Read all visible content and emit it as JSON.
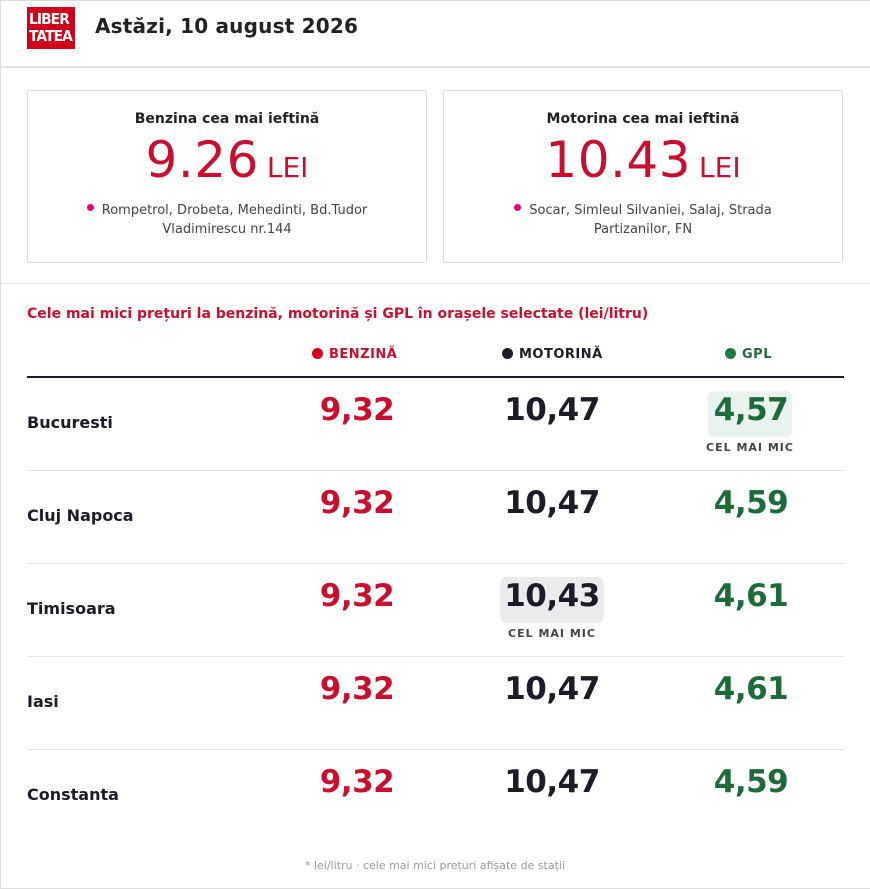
{
  "header": {
    "logo_line1": "LIBER",
    "logo_line2": "TATEA",
    "date": "Astăzi, 10 august 2026"
  },
  "cards": [
    {
      "title": "Benzina cea mai ieftină",
      "price": "9.26",
      "unit": "LEI",
      "location": "Rompetrol, Drobeta, Mehedinti, Bd.Tudor Vladimirescu nr.144"
    },
    {
      "title": "Motorina cea mai ieftină",
      "price": "10.43",
      "unit": "LEI",
      "location": "Socar, Simleul Silvaniei, Salaj, Strada Partizanilor, FN"
    }
  ],
  "table": {
    "title": "Cele mai mici prețuri la benzină, motorină și GPL în orașele selectate (lei/litru)",
    "columns": {
      "benzina": "BENZINĂ",
      "motorina": "MOTORINĂ",
      "gpl": "GPL"
    },
    "lowest_label": "CEL MAI MIC",
    "rows": [
      {
        "city": "Bucuresti",
        "benzina": "9,32",
        "motorina": "10,47",
        "gpl": "4,57"
      },
      {
        "city": "Cluj Napoca",
        "benzina": "9,32",
        "motorina": "10,47",
        "gpl": "4,59"
      },
      {
        "city": "Timisoara",
        "benzina": "9,32",
        "motorina": "10,43",
        "gpl": "4,61"
      },
      {
        "city": "Iasi",
        "benzina": "9,32",
        "motorina": "10,47",
        "gpl": "4,61"
      },
      {
        "city": "Constanta",
        "benzina": "9,32",
        "motorina": "10,47",
        "gpl": "4,59"
      }
    ]
  },
  "footnote": "* lei/litru · cele mai mici prețuri afișate de stații",
  "colors": {
    "brand_red": "#c8102e",
    "diesel_dark": "#1c1c28",
    "gpl_green": "#1e6b3a",
    "location_pin": "#e6007e"
  },
  "icons": {
    "location": "location-pin-icon"
  }
}
